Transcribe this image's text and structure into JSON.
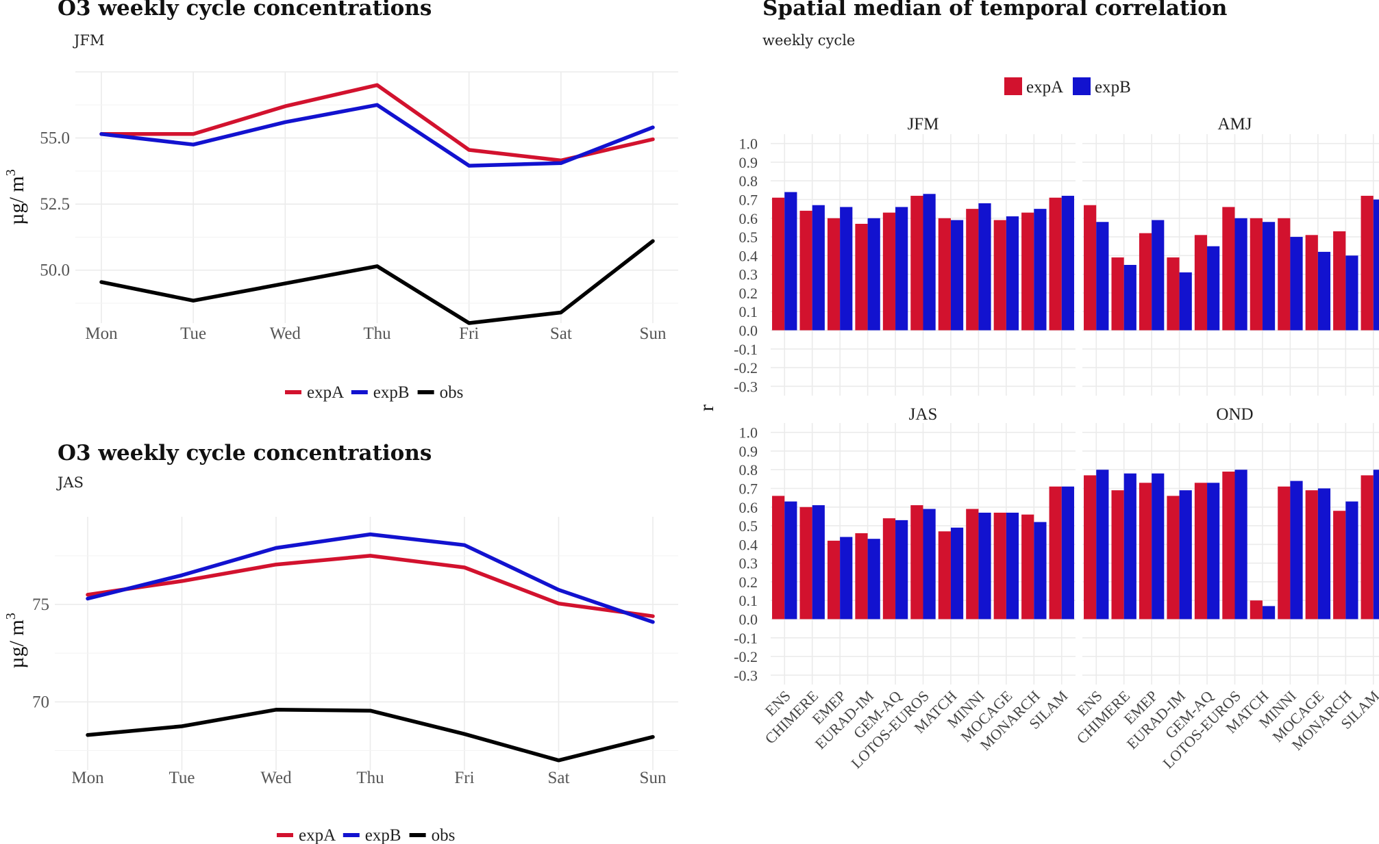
{
  "chart_data": [
    {
      "type": "line",
      "title": "O3 weekly cycle concentrations",
      "subtitle": "JFM",
      "xlabel": "",
      "ylabel": "µg/ m3",
      "ylabel_base": "µg/ m",
      "ylabel_sup": "3",
      "categories": [
        "Mon",
        "Tue",
        "Wed",
        "Thu",
        "Fri",
        "Sat",
        "Sun"
      ],
      "yticks": [
        "50.0",
        "52.5",
        "55.0"
      ],
      "ylim": [
        48.0,
        57.5
      ],
      "series": [
        {
          "name": "expA",
          "color": "#d2122e",
          "values": [
            55.15,
            55.15,
            56.2,
            57.0,
            54.55,
            54.15,
            54.95
          ]
        },
        {
          "name": "expB",
          "color": "#1212cf",
          "values": [
            55.15,
            54.75,
            55.6,
            56.25,
            53.95,
            54.05,
            55.4
          ]
        },
        {
          "name": "obs",
          "color": "#000000",
          "values": [
            49.55,
            48.85,
            49.5,
            50.15,
            48.0,
            48.4,
            51.1
          ]
        }
      ]
    },
    {
      "type": "line",
      "title": "O3 weekly cycle concentrations",
      "subtitle": "JAS",
      "xlabel": "",
      "ylabel": "µg/ m3",
      "ylabel_base": "µg/ m",
      "ylabel_sup": "3",
      "categories": [
        "Mon",
        "Tue",
        "Wed",
        "Thu",
        "Fri",
        "Sat",
        "Sun"
      ],
      "yticks": [
        "70",
        "75"
      ],
      "ylim": [
        66.5,
        79.5
      ],
      "series": [
        {
          "name": "expA",
          "color": "#d2122e",
          "values": [
            75.5,
            76.2,
            77.05,
            77.5,
            76.9,
            75.05,
            74.4
          ]
        },
        {
          "name": "expB",
          "color": "#1212cf",
          "values": [
            75.3,
            76.5,
            77.9,
            78.6,
            78.05,
            75.75,
            74.1
          ]
        },
        {
          "name": "obs",
          "color": "#000000",
          "values": [
            68.3,
            68.75,
            69.6,
            69.55,
            68.35,
            67.0,
            68.2
          ]
        }
      ]
    },
    {
      "type": "bar",
      "title": "Spatial median of temporal correlation",
      "subtitle": "weekly cycle",
      "ylabel": "r",
      "xlabel": "",
      "categories": [
        "ENS",
        "CHIMERE",
        "EMEP",
        "EURAD-IM",
        "GEM-AQ",
        "LOTOS-EUROS",
        "MATCH",
        "MINNI",
        "MOCAGE",
        "MONARCH",
        "SILAM"
      ],
      "yticks": [
        "-0.3",
        "-0.2",
        "-0.1",
        "0.0",
        "0.1",
        "0.2",
        "0.3",
        "0.4",
        "0.5",
        "0.6",
        "0.7",
        "0.8",
        "0.9",
        "1.0"
      ],
      "ylim": [
        -0.35,
        1.05
      ],
      "legend": [
        {
          "name": "expA",
          "color": "#d2122e"
        },
        {
          "name": "expB",
          "color": "#1212cf"
        }
      ],
      "panels": [
        {
          "name": "JFM",
          "expA": [
            0.71,
            0.64,
            0.6,
            0.57,
            0.63,
            0.72,
            0.6,
            0.65,
            0.59,
            0.63,
            0.71
          ],
          "expB": [
            0.74,
            0.67,
            0.66,
            0.6,
            0.66,
            0.73,
            0.59,
            0.68,
            0.61,
            0.65,
            0.72
          ]
        },
        {
          "name": "AMJ",
          "expA": [
            0.67,
            0.39,
            0.52,
            0.39,
            0.51,
            0.66,
            0.6,
            0.6,
            0.51,
            0.53,
            0.72
          ],
          "expB": [
            0.58,
            0.35,
            0.59,
            0.31,
            0.45,
            0.6,
            0.58,
            0.5,
            0.42,
            0.4,
            0.7
          ]
        },
        {
          "name": "JAS",
          "expA": [
            0.66,
            0.6,
            0.42,
            0.46,
            0.54,
            0.61,
            0.47,
            0.59,
            0.57,
            0.56,
            0.71
          ],
          "expB": [
            0.63,
            0.61,
            0.44,
            0.43,
            0.53,
            0.59,
            0.49,
            0.57,
            0.57,
            0.52,
            0.71
          ]
        },
        {
          "name": "OND",
          "expA": [
            0.77,
            0.69,
            0.73,
            0.66,
            0.73,
            0.79,
            0.1,
            0.71,
            0.69,
            0.58,
            0.77
          ],
          "expB": [
            0.8,
            0.78,
            0.78,
            0.69,
            0.73,
            0.8,
            0.07,
            0.74,
            0.7,
            0.63,
            0.8
          ]
        }
      ]
    }
  ]
}
